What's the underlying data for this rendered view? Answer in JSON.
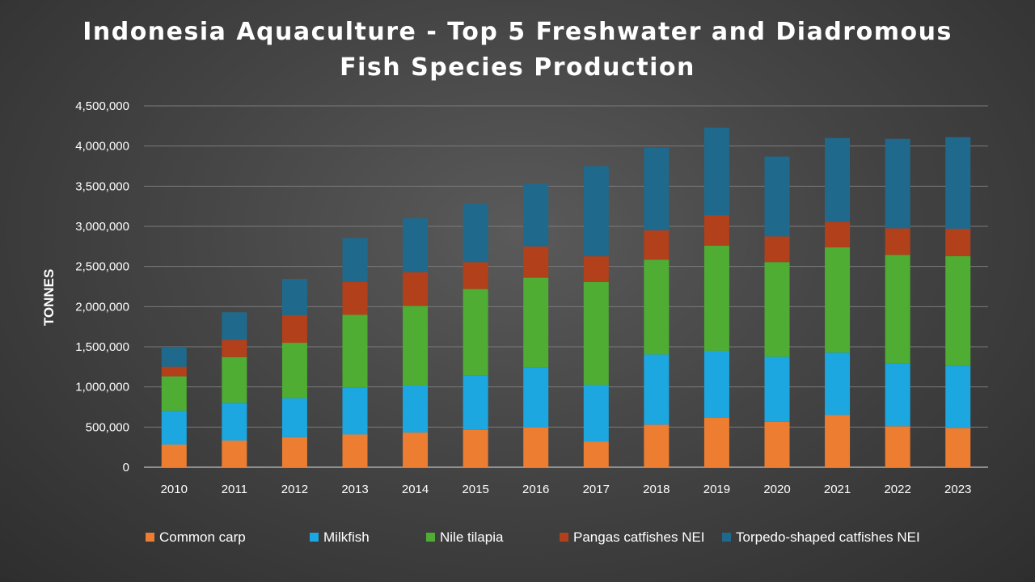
{
  "chart_data": {
    "type": "bar",
    "stacked": true,
    "title_lines": [
      "Indonesia Aquaculture - Top 5 Freshwater and Diadromous",
      "Fish Species Production"
    ],
    "xlabel": "",
    "ylabel": "TONNES",
    "ylim": [
      0,
      4500000
    ],
    "yticks": [
      0,
      500000,
      1000000,
      1500000,
      2000000,
      2500000,
      3000000,
      3500000,
      4000000,
      4500000
    ],
    "ytick_labels": [
      "0",
      "500,000",
      "1,000,000",
      "1,500,000",
      "2,000,000",
      "2,500,000",
      "3,000,000",
      "3,500,000",
      "4,000,000",
      "4,500,000"
    ],
    "grid": true,
    "legend_position": "bottom",
    "categories": [
      "2010",
      "2011",
      "2012",
      "2013",
      "2014",
      "2015",
      "2016",
      "2017",
      "2018",
      "2019",
      "2020",
      "2021",
      "2022",
      "2023"
    ],
    "series": [
      {
        "name": "Common carp",
        "color": "#ED7D31",
        "values": [
          282000,
          332000,
          375000,
          408000,
          432000,
          466000,
          497000,
          317000,
          530000,
          618000,
          565000,
          650000,
          510000,
          490000
        ]
      },
      {
        "name": "Milkfish",
        "color": "#1CA7E0",
        "values": [
          420000,
          470000,
          485000,
          580000,
          585000,
          673000,
          748000,
          710000,
          875000,
          832000,
          810000,
          778000,
          780000,
          770000
        ]
      },
      {
        "name": "Nile tilapia",
        "color": "#4EAD32",
        "values": [
          430000,
          570000,
          690000,
          910000,
          993000,
          1080000,
          1115000,
          1280000,
          1180000,
          1310000,
          1180000,
          1310000,
          1355000,
          1370000
        ]
      },
      {
        "name": "Pangas catfishes NEI",
        "color": "#B2401B",
        "values": [
          120000,
          215000,
          345000,
          410000,
          420000,
          335000,
          390000,
          320000,
          365000,
          380000,
          320000,
          320000,
          330000,
          340000
        ]
      },
      {
        "name": "Torpedo-shaped catfishes NEI",
        "color": "#1F6A8C",
        "values": [
          248000,
          343000,
          450000,
          547000,
          670000,
          726000,
          780000,
          1123000,
          1030000,
          1090000,
          995000,
          1042000,
          1115000,
          1140000
        ]
      }
    ]
  }
}
